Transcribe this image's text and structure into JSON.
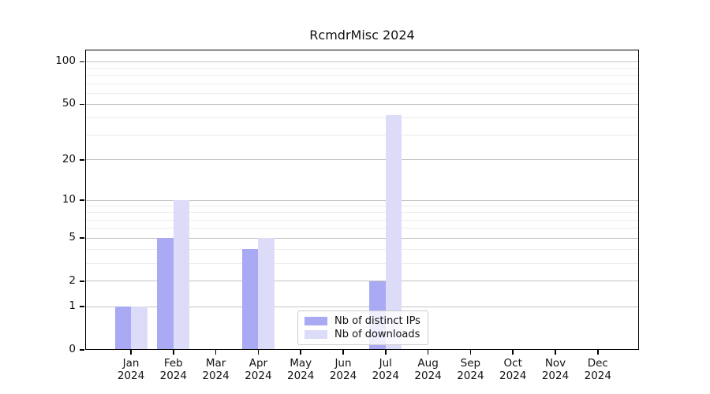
{
  "chart_data": {
    "type": "bar",
    "title": "RcmdrMisc 2024",
    "categories": [
      "Jan",
      "Feb",
      "Mar",
      "Apr",
      "May",
      "Jun",
      "Jul",
      "Aug",
      "Sep",
      "Oct",
      "Nov",
      "Dec"
    ],
    "category_year_line": "2024",
    "series": [
      {
        "name": "Nb of distinct IPs",
        "color": "#a9a9f4",
        "values": [
          1,
          5,
          0,
          4,
          0,
          0,
          2,
          0,
          0,
          0,
          0,
          0
        ]
      },
      {
        "name": "Nb of downloads",
        "color": "#dcdcf9",
        "values": [
          1,
          10,
          0,
          5,
          0,
          0,
          42,
          0,
          0,
          0,
          0,
          0
        ]
      }
    ],
    "yscale": "log1p",
    "yticks": [
      0,
      1,
      2,
      5,
      10,
      20,
      50,
      100
    ],
    "yticks_minor": [
      3,
      4,
      6,
      7,
      8,
      9,
      30,
      40,
      60,
      70,
      80,
      90
    ],
    "ylim": [
      0,
      122
    ],
    "xlabel": "",
    "ylabel": "",
    "grid": "horizontal",
    "legend_position": "lower-center"
  },
  "colors": {
    "axis": "#000000",
    "major_grid": "#c3c3c3",
    "minor_grid": "#ececec",
    "background": "#ffffff",
    "legend_border": "#cccccc",
    "text": "#111111"
  }
}
